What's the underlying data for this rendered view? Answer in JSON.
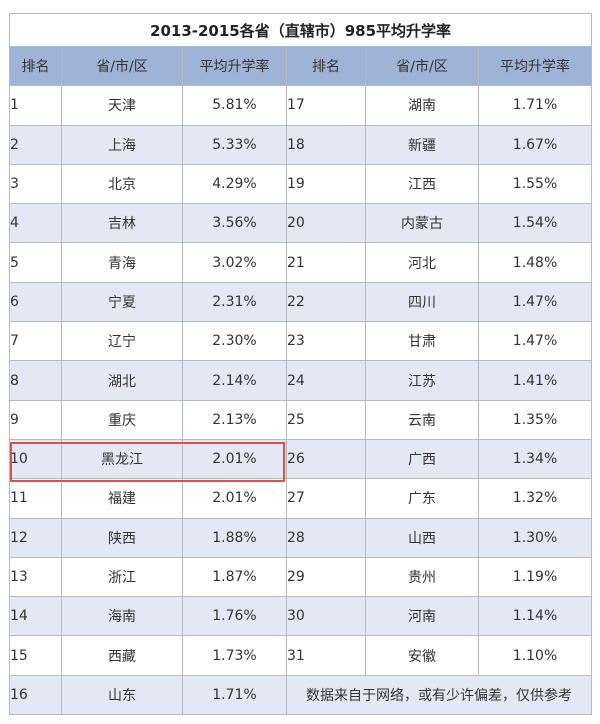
{
  "title": "2013-2015各省（直辖市）985平均升学率",
  "headers": [
    "排名",
    "省/市/区",
    "平均升学率",
    "排名",
    "省/市/区",
    "平均升学率"
  ],
  "rows": [
    {
      "rank": "1",
      "province": "天津",
      "rate": "5.81%",
      "rank2": "17",
      "province2": "湖南",
      "rate2": "1.71%"
    },
    {
      "rank": "2",
      "province": "上海",
      "rate": "5.33%",
      "rank2": "18",
      "province2": "新疆",
      "rate2": "1.67%"
    },
    {
      "rank": "3",
      "province": "北京",
      "rate": "4.29%",
      "rank2": "19",
      "province2": "江西",
      "rate2": "1.55%"
    },
    {
      "rank": "4",
      "province": "吉林",
      "rate": "3.56%",
      "rank2": "20",
      "province2": "内蒙古",
      "rate2": "1.54%"
    },
    {
      "rank": "5",
      "province": "青海",
      "rate": "3.02%",
      "rank2": "21",
      "province2": "河北",
      "rate2": "1.48%"
    },
    {
      "rank": "6",
      "province": "宁夏",
      "rate": "2.31%",
      "rank2": "22",
      "province2": "四川",
      "rate2": "1.47%"
    },
    {
      "rank": "7",
      "province": "辽宁",
      "rate": "2.30%",
      "rank2": "23",
      "province2": "甘肃",
      "rate2": "1.47%"
    },
    {
      "rank": "8",
      "province": "湖北",
      "rate": "2.14%",
      "rank2": "24",
      "province2": "江苏",
      "rate2": "1.41%"
    },
    {
      "rank": "9",
      "province": "重庆",
      "rate": "2.13%",
      "rank2": "25",
      "province2": "云南",
      "rate2": "1.35%"
    },
    {
      "rank": "10",
      "province": "黑龙江",
      "rate": "2.01%",
      "rank2": "26",
      "province2": "广西",
      "rate2": "1.34%"
    },
    {
      "rank": "11",
      "province": "福建",
      "rate": "2.01%",
      "rank2": "27",
      "province2": "广东",
      "rate2": "1.32%"
    },
    {
      "rank": "12",
      "province": "陕西",
      "rate": "1.88%",
      "rank2": "28",
      "province2": "山西",
      "rate2": "1.30%"
    },
    {
      "rank": "13",
      "province": "浙江",
      "rate": "1.87%",
      "rank2": "29",
      "province2": "贵州",
      "rate2": "1.19%"
    },
    {
      "rank": "14",
      "province": "海南",
      "rate": "1.76%",
      "rank2": "30",
      "province2": "河南",
      "rate2": "1.14%"
    },
    {
      "rank": "15",
      "province": "西藏",
      "rate": "1.73%",
      "rank2": "31",
      "province2": "安徽",
      "rate2": "1.10%"
    },
    {
      "rank": "16",
      "province": "山东",
      "rate": "1.71%"
    }
  ],
  "note": "数据来自于网络，或有少许偏差，仅供参考",
  "colors": {
    "header_bg": "#9fb3d6",
    "alt_row_bg": "#e3e8f4",
    "highlight_border": "#e0504a"
  }
}
